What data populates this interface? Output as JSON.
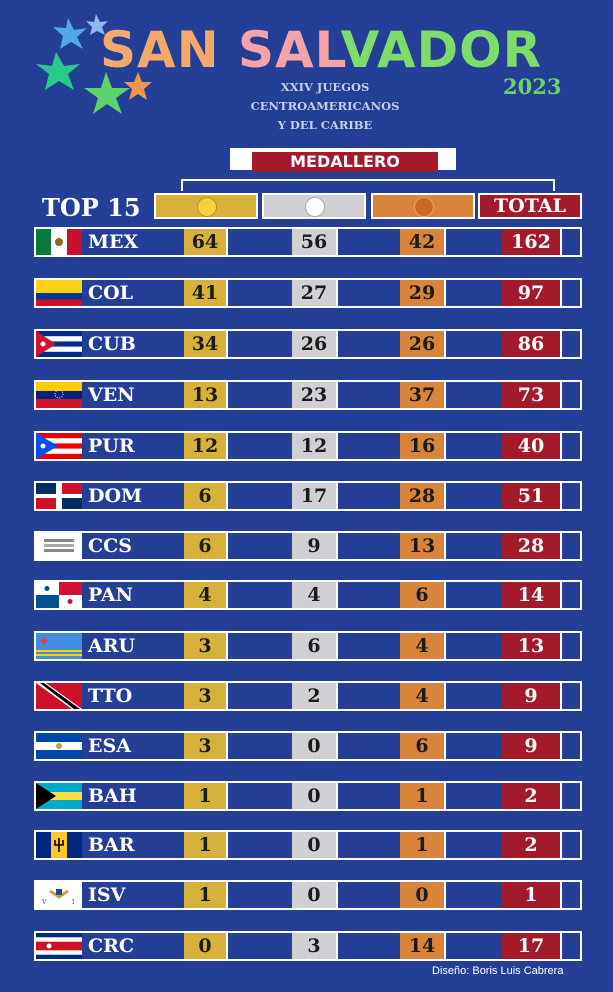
{
  "header": {
    "title_a": "SAN ",
    "title_b": "SAL",
    "title_c": "VADOR",
    "year": "2023",
    "subtitle_lines": [
      "XXIV JUEGOS",
      "CENTROAMERICANOS",
      "Y DEL CARIBE"
    ]
  },
  "table": {
    "banner": "MEDALLERO",
    "top_label": "TOP 15",
    "total_label": "TOTAL",
    "icons": [
      "gold-medal-icon",
      "silver-medal-icon",
      "bronze-medal-icon"
    ],
    "rows": [
      {
        "code": "MEX",
        "gold": "64",
        "silver": "56",
        "bronze": "42",
        "total": "162"
      },
      {
        "code": "COL",
        "gold": "41",
        "silver": "27",
        "bronze": "29",
        "total": "97"
      },
      {
        "code": "CUB",
        "gold": "34",
        "silver": "26",
        "bronze": "26",
        "total": "86"
      },
      {
        "code": "VEN",
        "gold": "13",
        "silver": "23",
        "bronze": "37",
        "total": "73"
      },
      {
        "code": "PUR",
        "gold": "12",
        "silver": "12",
        "bronze": "16",
        "total": "40"
      },
      {
        "code": "DOM",
        "gold": "6",
        "silver": "17",
        "bronze": "28",
        "total": "51"
      },
      {
        "code": "CCS",
        "gold": "6",
        "silver": "9",
        "bronze": "13",
        "total": "28"
      },
      {
        "code": "PAN",
        "gold": "4",
        "silver": "4",
        "bronze": "6",
        "total": "14"
      },
      {
        "code": "ARU",
        "gold": "3",
        "silver": "6",
        "bronze": "4",
        "total": "13"
      },
      {
        "code": "TTO",
        "gold": "3",
        "silver": "2",
        "bronze": "4",
        "total": "9"
      },
      {
        "code": "ESA",
        "gold": "3",
        "silver": "0",
        "bronze": "6",
        "total": "9"
      },
      {
        "code": "BAH",
        "gold": "1",
        "silver": "0",
        "bronze": "1",
        "total": "2"
      },
      {
        "code": "BAR",
        "gold": "1",
        "silver": "0",
        "bronze": "1",
        "total": "2"
      },
      {
        "code": "ISV",
        "gold": "1",
        "silver": "0",
        "bronze": "0",
        "total": "1"
      },
      {
        "code": "CRC",
        "gold": "0",
        "silver": "3",
        "bronze": "14",
        "total": "17"
      }
    ]
  },
  "credit": "Diseño: Boris Luis Cabrera",
  "colors": {
    "gold": "#d6b23a",
    "silver": "#cfcfd4",
    "bronze": "#d8843a",
    "total": "#a31a2a",
    "background": "#243f96"
  }
}
